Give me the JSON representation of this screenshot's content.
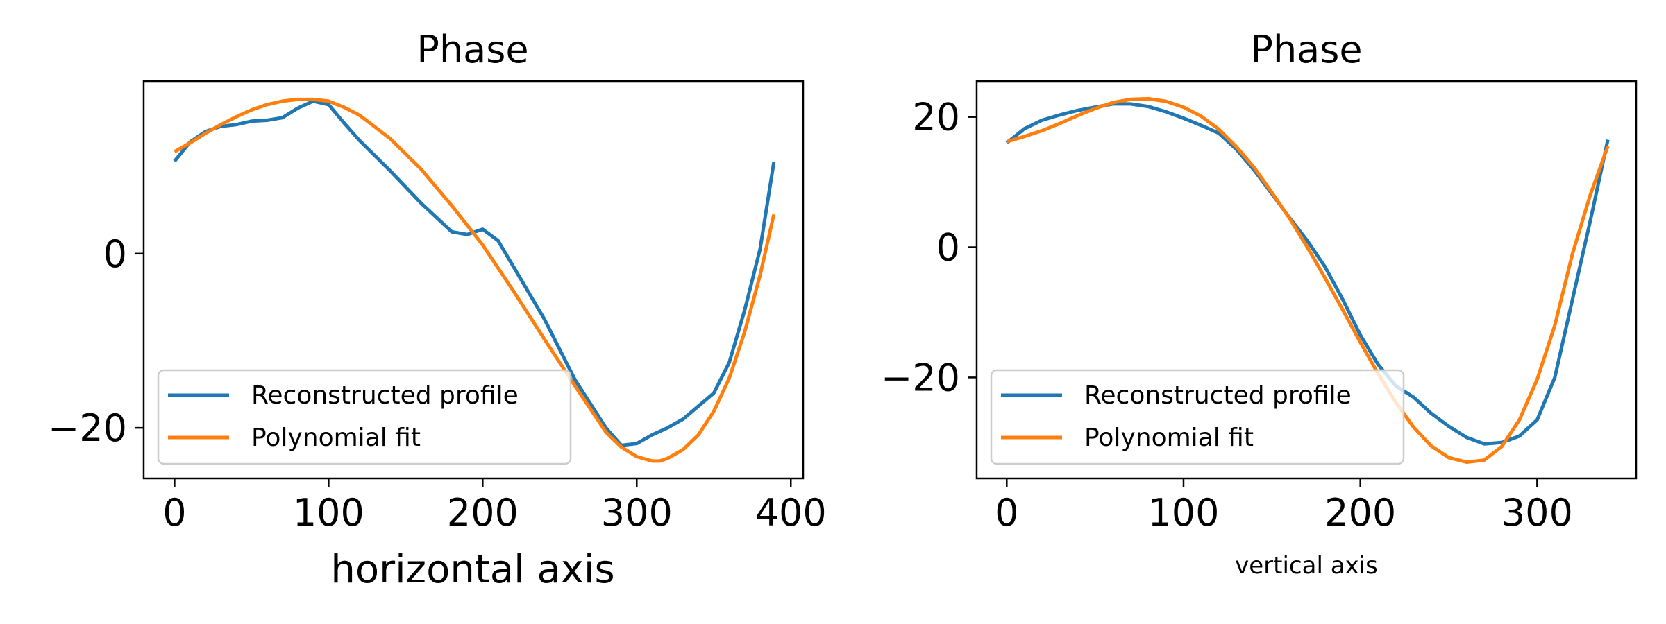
{
  "chart_data": [
    {
      "type": "line",
      "title": "Phase",
      "xlabel": "horizontal axis",
      "ylabel": "",
      "xlim": [
        -20,
        408
      ],
      "ylim": [
        -25.8,
        19.8
      ],
      "xticks": [
        0,
        100,
        200,
        300,
        400
      ],
      "xtick_labels": [
        "0",
        "100",
        "200",
        "300",
        "400"
      ],
      "yticks": [
        0,
        -20
      ],
      "ytick_labels": [
        "0",
        "−20"
      ],
      "legend": {
        "position": "lower-left",
        "entries": [
          "Reconstructed profile",
          "Polynomial fit"
        ]
      },
      "grid": false,
      "series": [
        {
          "name": "Reconstructed profile",
          "color": "#1f77b4",
          "x": [
            0,
            10,
            20,
            30,
            40,
            50,
            60,
            70,
            80,
            90,
            100,
            110,
            120,
            140,
            160,
            180,
            190,
            200,
            210,
            220,
            240,
            260,
            280,
            290,
            300,
            310,
            320,
            330,
            340,
            350,
            360,
            370,
            380,
            389
          ],
          "y": [
            10.6,
            12.8,
            14.0,
            14.6,
            14.8,
            15.2,
            15.3,
            15.6,
            16.7,
            17.5,
            17.1,
            15.0,
            13.0,
            9.5,
            5.8,
            2.5,
            2.2,
            2.8,
            1.5,
            -1.5,
            -7.5,
            -14.5,
            -20.0,
            -22.0,
            -21.8,
            -20.8,
            -20.0,
            -19.0,
            -17.5,
            -16.0,
            -12.5,
            -6.5,
            0.5,
            10.5
          ]
        },
        {
          "name": "Polynomial fit",
          "color": "#ff7f0e",
          "x": [
            0,
            10,
            20,
            30,
            40,
            50,
            60,
            70,
            80,
            90,
            100,
            110,
            120,
            140,
            160,
            180,
            200,
            220,
            240,
            260,
            280,
            290,
            300,
            310,
            315,
            320,
            330,
            340,
            350,
            360,
            370,
            380,
            389
          ],
          "y": [
            11.7,
            12.7,
            13.8,
            14.8,
            15.7,
            16.5,
            17.1,
            17.5,
            17.7,
            17.7,
            17.5,
            16.8,
            15.9,
            13.2,
            9.7,
            5.5,
            1.0,
            -4.3,
            -9.8,
            -15.2,
            -20.5,
            -22.2,
            -23.3,
            -23.8,
            -23.8,
            -23.5,
            -22.5,
            -20.8,
            -18.1,
            -14.3,
            -9.0,
            -2.5,
            4.5
          ]
        }
      ]
    },
    {
      "type": "line",
      "title": "Phase",
      "xlabel": "vertical axis",
      "ylabel": "",
      "xlim": [
        -17,
        356
      ],
      "ylim": [
        -35.5,
        25.5
      ],
      "xticks": [
        0,
        100,
        200,
        300
      ],
      "xtick_labels": [
        "0",
        "100",
        "200",
        "300"
      ],
      "yticks": [
        20,
        0,
        -20
      ],
      "ytick_labels": [
        "20",
        "0",
        "−20"
      ],
      "legend": {
        "position": "lower-left",
        "entries": [
          "Reconstructed profile",
          "Polynomial fit"
        ]
      },
      "grid": false,
      "series": [
        {
          "name": "Reconstructed profile",
          "color": "#1f77b4",
          "x": [
            0,
            10,
            20,
            30,
            40,
            50,
            60,
            70,
            80,
            90,
            100,
            110,
            120,
            130,
            140,
            150,
            160,
            170,
            180,
            190,
            200,
            210,
            220,
            230,
            240,
            250,
            260,
            270,
            280,
            290,
            300,
            310,
            320,
            330,
            340
          ],
          "y": [
            16.0,
            18.2,
            19.5,
            20.3,
            21.0,
            21.5,
            22.0,
            22.0,
            21.6,
            20.8,
            19.8,
            18.7,
            17.5,
            15.0,
            11.8,
            8.2,
            4.5,
            1.0,
            -3.0,
            -8.0,
            -13.5,
            -18.0,
            -21.3,
            -23.0,
            -25.5,
            -27.5,
            -29.2,
            -30.2,
            -30.0,
            -29.0,
            -26.5,
            -20.0,
            -8.0,
            4.0,
            16.5
          ]
        },
        {
          "name": "Polynomial fit",
          "color": "#ff7f0e",
          "x": [
            0,
            10,
            20,
            30,
            40,
            50,
            60,
            70,
            80,
            90,
            100,
            110,
            120,
            130,
            140,
            150,
            160,
            170,
            180,
            190,
            200,
            210,
            220,
            230,
            240,
            250,
            260,
            270,
            280,
            290,
            300,
            310,
            320,
            330,
            340
          ],
          "y": [
            16.2,
            17.0,
            17.9,
            19.0,
            20.2,
            21.3,
            22.2,
            22.7,
            22.8,
            22.4,
            21.5,
            20.1,
            18.1,
            15.4,
            12.2,
            8.4,
            4.4,
            0.0,
            -4.7,
            -9.6,
            -14.6,
            -19.4,
            -23.8,
            -27.6,
            -30.5,
            -32.3,
            -33.0,
            -32.7,
            -30.6,
            -26.5,
            -20.3,
            -12.0,
            -1.0,
            8.0,
            15.5
          ]
        }
      ]
    }
  ]
}
